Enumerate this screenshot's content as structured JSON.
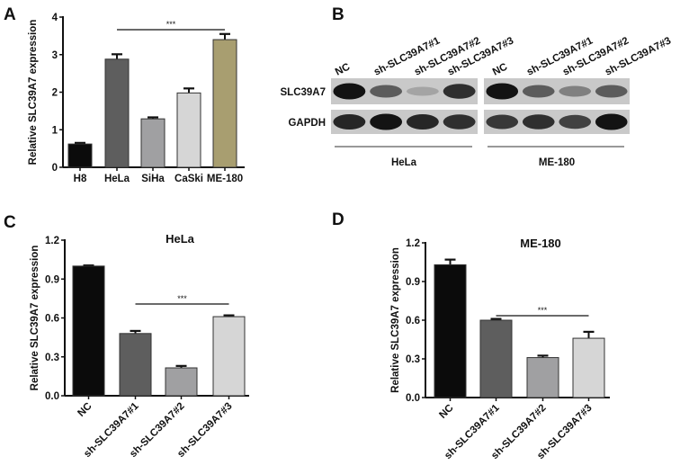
{
  "figure": {
    "panels": [
      "A",
      "B",
      "C",
      "D"
    ]
  },
  "colors": {
    "axis": "#111111",
    "H8": "#0b0b0b",
    "HeLa": "#5e5e5e",
    "SiHa": "#a0a0a2",
    "CaSki": "#d6d6d6",
    "ME-180": "#a89e70",
    "NC": "#0b0b0b",
    "sh1": "#5e5e5e",
    "sh2": "#a0a0a2",
    "sh3": "#d6d6d6",
    "blot_bg": "#c9c9c9"
  },
  "western_blot": {
    "letter": "B",
    "rows": [
      "SLC39A7",
      "GAPDH"
    ],
    "lanes": [
      "NC",
      "sh-SLC39A7#1",
      "sh-SLC39A7#2",
      "sh-SLC39A7#3"
    ],
    "groups": [
      {
        "label": "HeLa",
        "slc39a7_intensity": [
          1.0,
          0.6,
          0.2,
          0.85
        ],
        "gapdh_intensity": [
          0.9,
          1.0,
          0.9,
          0.85
        ]
      },
      {
        "label": "ME-180",
        "slc39a7_intensity": [
          1.0,
          0.6,
          0.4,
          0.6
        ],
        "gapdh_intensity": [
          0.8,
          0.85,
          0.75,
          1.0
        ]
      }
    ]
  },
  "chart_data": [
    {
      "panel": "A",
      "type": "bar",
      "title": "",
      "xlabel": "",
      "ylabel": "Relative SLC39A7 expression",
      "categories": [
        "H8",
        "HeLa",
        "SiHa",
        "CaSki",
        "ME-180"
      ],
      "values": [
        0.62,
        2.88,
        1.29,
        1.98,
        3.4
      ],
      "errors": [
        0.03,
        0.13,
        0.04,
        0.12,
        0.15
      ],
      "ylim": [
        0,
        4
      ],
      "yticks": [
        "0",
        "1",
        "2",
        "3",
        "4"
      ],
      "grid": false,
      "significance": {
        "from": "HeLa",
        "to": "ME-180",
        "label": "***"
      }
    },
    {
      "panel": "C",
      "type": "bar",
      "title": "HeLa",
      "xlabel": "",
      "ylabel": "Relative SLC39A7 expression",
      "categories": [
        "NC",
        "sh-SLC39A7#1",
        "sh-SLC39A7#2",
        "sh-SLC39A7#3"
      ],
      "values": [
        1.0,
        0.48,
        0.215,
        0.61
      ],
      "errors": [
        0.005,
        0.02,
        0.015,
        0.01
      ],
      "ylim": [
        0,
        1.2
      ],
      "yticks": [
        "0.0",
        "0.3",
        "0.6",
        "0.9",
        "1.2"
      ],
      "grid": false,
      "significance": {
        "from": "sh-SLC39A7#1",
        "to": "sh-SLC39A7#3",
        "label": "***"
      }
    },
    {
      "panel": "D",
      "type": "bar",
      "title": "ME-180",
      "xlabel": "",
      "ylabel": "Relative SLC39A7 expression",
      "categories": [
        "NC",
        "sh-SLC39A7#1",
        "sh-SLC39A7#2",
        "sh-SLC39A7#3"
      ],
      "values": [
        1.03,
        0.6,
        0.31,
        0.46
      ],
      "errors": [
        0.04,
        0.01,
        0.015,
        0.05
      ],
      "ylim": [
        0,
        1.2
      ],
      "yticks": [
        "0.0",
        "0.3",
        "0.6",
        "0.9",
        "1.2"
      ],
      "grid": false,
      "significance": {
        "from": "sh-SLC39A7#1",
        "to": "sh-SLC39A7#3",
        "label": "***"
      }
    }
  ]
}
